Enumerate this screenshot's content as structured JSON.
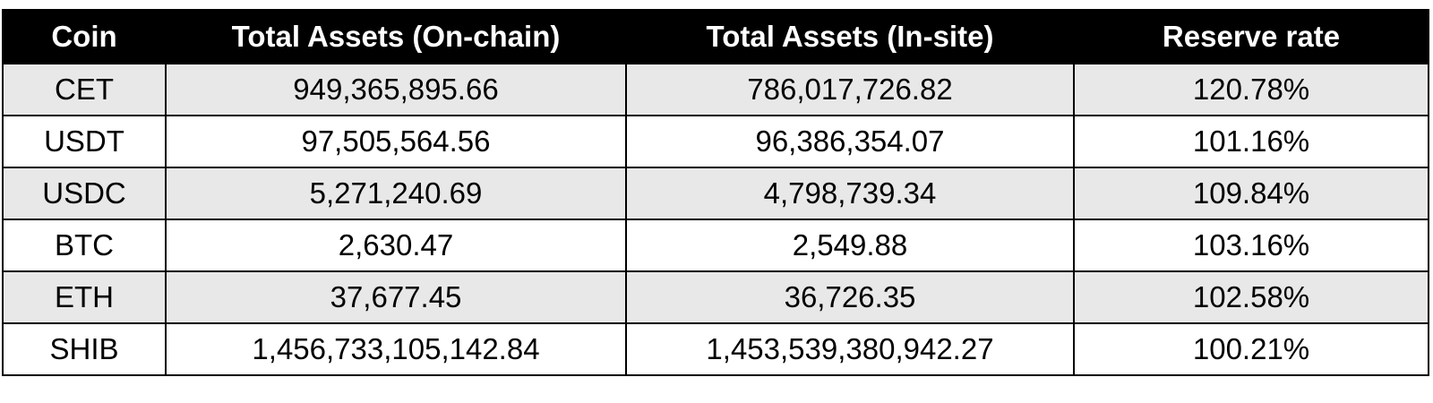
{
  "table": {
    "headers": [
      "Coin",
      "Total Assets (On-chain)",
      "Total Assets (In-site)",
      "Reserve rate"
    ],
    "rows": [
      [
        "CET",
        "949,365,895.66",
        "786,017,726.82",
        "120.78%"
      ],
      [
        "USDT",
        "97,505,564.56",
        "96,386,354.07",
        "101.16%"
      ],
      [
        "USDC",
        "5,271,240.69",
        "4,798,739.34",
        "109.84%"
      ],
      [
        "BTC",
        "2,630.47",
        "2,549.88",
        "103.16%"
      ],
      [
        "ETH",
        "37,677.45",
        "36,726.35",
        "102.58%"
      ],
      [
        "SHIB",
        "1,456,733,105,142.84",
        "1,453,539,380,942.27",
        "100.21%"
      ]
    ],
    "header_bg": "#000000",
    "header_text": "#ffffff",
    "shaded_row_bg": "#e8e8e8",
    "plain_row_bg": "#ffffff"
  }
}
